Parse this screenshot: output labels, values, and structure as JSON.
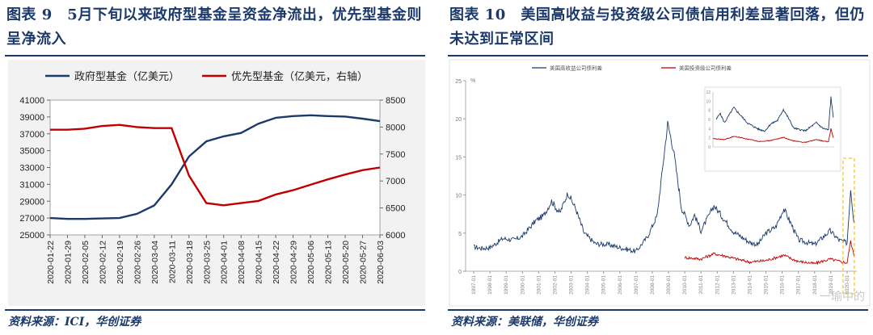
{
  "panel1": {
    "title": "图表 9　5月下旬以来政府型基金呈资金净流出，优先型基金则呈净流入",
    "source": "资料来源：ICI，华创证券"
  },
  "panel2": {
    "title": "图表 10　美国高收益与投资级公司债信用利差显著回落，但仍未达到正常区间",
    "source": "资料来源：美联储，华创证券"
  },
  "watermark": "一瑜中的",
  "chart_data": [
    {
      "type": "line",
      "x": [
        "2020-01-22",
        "2020-01-29",
        "2020-02-05",
        "2020-02-12",
        "2020-02-19",
        "2020-02-26",
        "2020-03-04",
        "2020-03-11",
        "2020-03-18",
        "2020-03-25",
        "2020-04-01",
        "2020-04-08",
        "2020-04-15",
        "2020-04-22",
        "2020-04-29",
        "2020-05-06",
        "2020-05-13",
        "2020-05-20",
        "2020-05-27",
        "2020-06-03"
      ],
      "series": [
        {
          "name": "政府型基金（亿美元）",
          "axis": "left",
          "color": "#1b3a6b",
          "values": [
            27000,
            26900,
            26900,
            26950,
            27000,
            27500,
            28500,
            31000,
            34300,
            36100,
            36700,
            37100,
            38200,
            38900,
            39100,
            39200,
            39100,
            39050,
            38800,
            38500
          ]
        },
        {
          "name": "优先型基金（亿美元，右轴）",
          "axis": "right",
          "color": "#c00000",
          "values": [
            7950,
            7950,
            7970,
            8020,
            8040,
            8000,
            7980,
            7980,
            7100,
            6590,
            6550,
            6590,
            6630,
            6750,
            6830,
            6930,
            7030,
            7120,
            7200,
            7250
          ]
        }
      ],
      "yleft": {
        "ticks": [
          25000,
          27000,
          29000,
          31000,
          33000,
          35000,
          37000,
          39000,
          41000
        ],
        "ylim": [
          25000,
          41000
        ]
      },
      "yright": {
        "ticks": [
          6000,
          6500,
          7000,
          7500,
          8000,
          8500
        ],
        "ylim": [
          6000,
          8500
        ]
      },
      "legend": "top",
      "grid": false
    },
    {
      "type": "line",
      "ylabel": "%",
      "ylim": [
        0,
        25
      ],
      "yticks": [
        0,
        5,
        10,
        15,
        20,
        25
      ],
      "xticks": [
        "1997-01",
        "1998-01",
        "1999-01",
        "2000-01",
        "2001-01",
        "2002-01",
        "2003-01",
        "2004-01",
        "2005-01",
        "2006-01",
        "2007-01",
        "2008-01",
        "2009-01",
        "2010-01",
        "2011-01",
        "2012-01",
        "2013-01",
        "2014-01",
        "2015-01",
        "2016-01",
        "2017-01",
        "2018-01",
        "2019-01",
        "2020-01"
      ],
      "series": [
        {
          "name": "美国高收益公司债利差",
          "color": "#1b3a6b",
          "points": [
            [
              1997.0,
              3.2
            ],
            [
              1997.5,
              3.0
            ],
            [
              1998.0,
              3.1
            ],
            [
              1998.8,
              4.3
            ],
            [
              1999.5,
              4.1
            ],
            [
              2000.0,
              4.6
            ],
            [
              2000.8,
              6.6
            ],
            [
              2001.3,
              7.3
            ],
            [
              2001.8,
              9.2
            ],
            [
              2002.3,
              7.6
            ],
            [
              2002.8,
              10.3
            ],
            [
              2003.3,
              8.1
            ],
            [
              2003.8,
              5.0
            ],
            [
              2004.5,
              3.6
            ],
            [
              2005.3,
              3.5
            ],
            [
              2006.0,
              3.1
            ],
            [
              2007.0,
              2.6
            ],
            [
              2007.7,
              4.5
            ],
            [
              2008.3,
              7.3
            ],
            [
              2008.95,
              19.4
            ],
            [
              2009.3,
              16.0
            ],
            [
              2009.8,
              8.3
            ],
            [
              2010.3,
              6.0
            ],
            [
              2010.6,
              7.4
            ],
            [
              2011.0,
              5.3
            ],
            [
              2011.8,
              8.6
            ],
            [
              2012.5,
              6.6
            ],
            [
              2013.0,
              5.2
            ],
            [
              2014.0,
              3.8
            ],
            [
              2014.5,
              3.5
            ],
            [
              2015.0,
              5.0
            ],
            [
              2015.6,
              5.8
            ],
            [
              2016.1,
              8.2
            ],
            [
              2016.6,
              6.0
            ],
            [
              2017.0,
              4.1
            ],
            [
              2018.0,
              3.5
            ],
            [
              2018.95,
              5.3
            ],
            [
              2019.5,
              4.1
            ],
            [
              2020.0,
              3.7
            ],
            [
              2020.22,
              10.9
            ],
            [
              2020.42,
              6.4
            ]
          ]
        },
        {
          "name": "美国投资级公司债利差",
          "color": "#c00000",
          "points": [
            [
              2010.0,
              1.8
            ],
            [
              2011.0,
              1.6
            ],
            [
              2011.8,
              2.3
            ],
            [
              2012.5,
              2.0
            ],
            [
              2013.0,
              1.7
            ],
            [
              2014.0,
              1.2
            ],
            [
              2015.0,
              1.4
            ],
            [
              2016.1,
              2.1
            ],
            [
              2016.6,
              1.6
            ],
            [
              2017.0,
              1.3
            ],
            [
              2018.0,
              1.0
            ],
            [
              2018.95,
              1.6
            ],
            [
              2019.5,
              1.3
            ],
            [
              2020.0,
              1.1
            ],
            [
              2020.22,
              4.0
            ],
            [
              2020.42,
              2.0
            ]
          ]
        }
      ],
      "inset": {
        "ylim": [
          0,
          12
        ],
        "yticks": [
          0,
          2,
          4,
          6,
          8,
          10,
          12
        ]
      }
    }
  ]
}
